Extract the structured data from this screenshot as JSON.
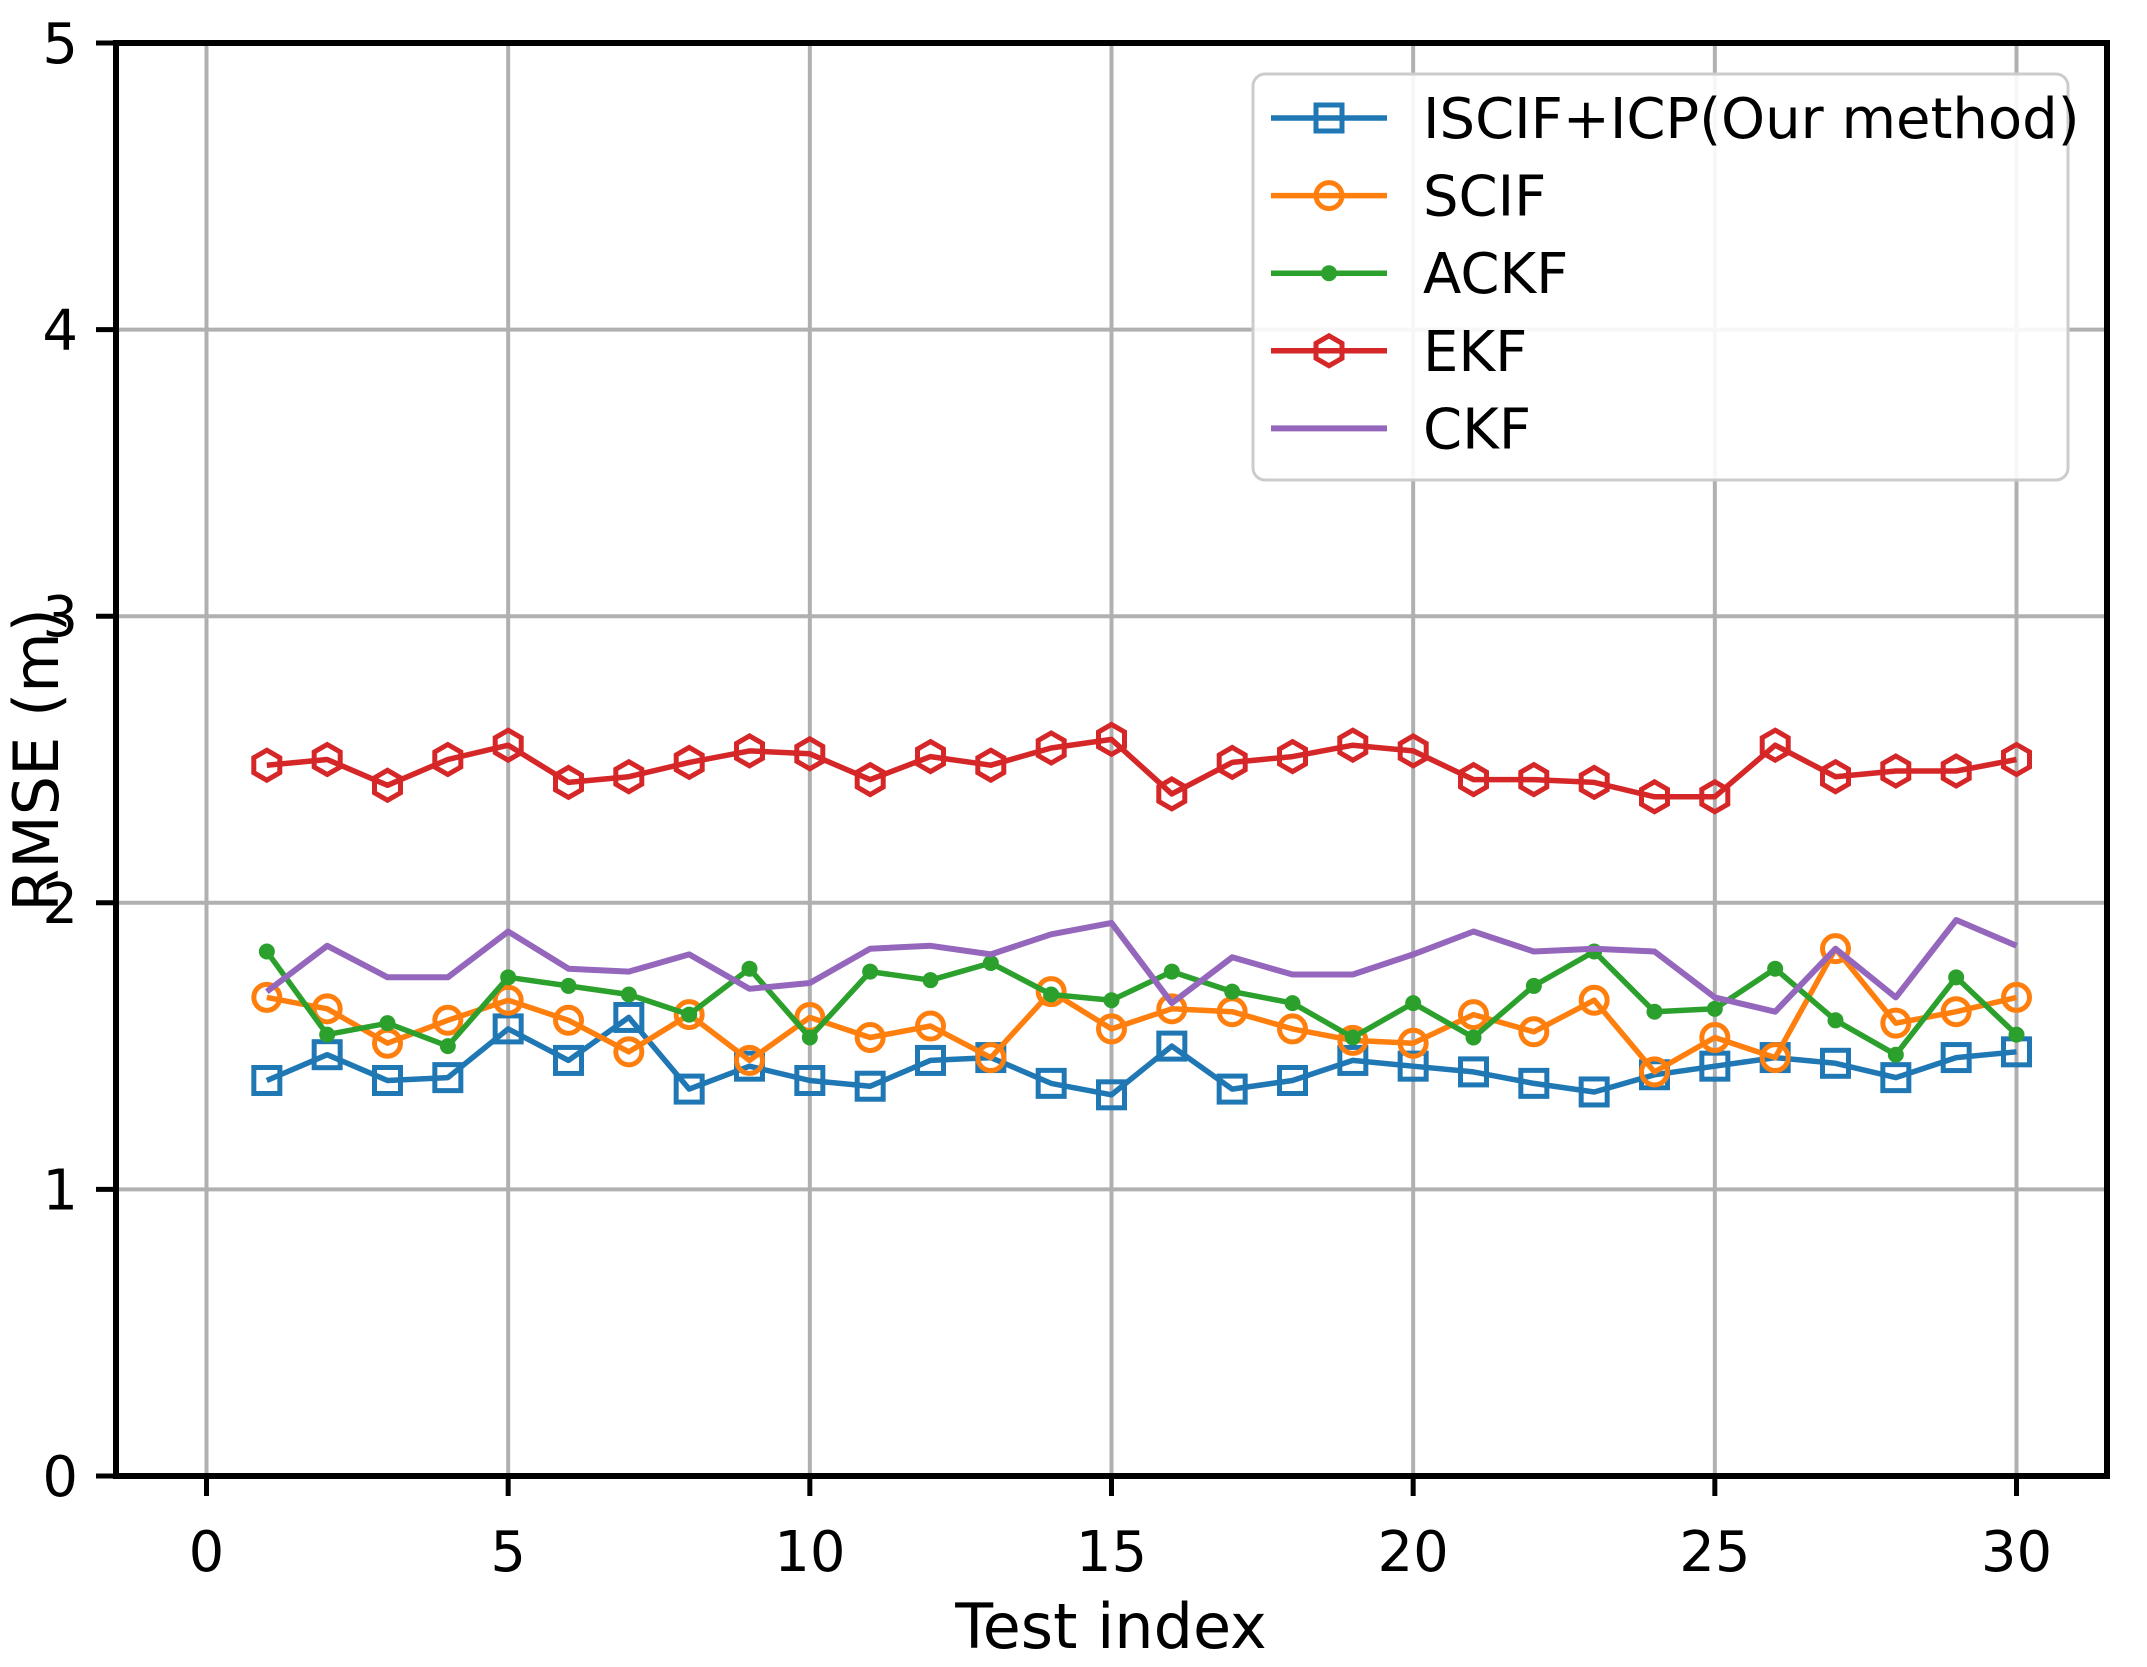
{
  "figure": {
    "background": "#ffffff",
    "grid_color": "#b0b0b0",
    "spine_color": "#000000",
    "legend_border_color": "#cccccc"
  },
  "chart_data": {
    "type": "line",
    "title": "",
    "xlabel": "Test index",
    "ylabel": "RMSE (m)",
    "x": [
      1,
      2,
      3,
      4,
      5,
      6,
      7,
      8,
      9,
      10,
      11,
      12,
      13,
      14,
      15,
      16,
      17,
      18,
      19,
      20,
      21,
      22,
      23,
      24,
      25,
      26,
      27,
      28,
      29,
      30
    ],
    "xticks": [
      0,
      5,
      10,
      15,
      20,
      25,
      30
    ],
    "yticks": [
      0,
      1,
      2,
      3,
      4,
      5
    ],
    "xlim": [
      -1.5,
      31.5
    ],
    "ylim": [
      0,
      5
    ],
    "grid": true,
    "legend_position": "upper right",
    "series": [
      {
        "name": "ISCIF+ICP(Our method)",
        "color": "#1f77b4",
        "marker": "square-open",
        "values": [
          1.38,
          1.47,
          1.38,
          1.39,
          1.56,
          1.45,
          1.6,
          1.35,
          1.43,
          1.38,
          1.36,
          1.45,
          1.46,
          1.37,
          1.33,
          1.5,
          1.35,
          1.38,
          1.45,
          1.43,
          1.41,
          1.37,
          1.34,
          1.4,
          1.43,
          1.46,
          1.44,
          1.39,
          1.46,
          1.48
        ]
      },
      {
        "name": "SCIF",
        "color": "#ff7f0e",
        "marker": "circle-open",
        "values": [
          1.67,
          1.63,
          1.51,
          1.59,
          1.66,
          1.59,
          1.48,
          1.61,
          1.45,
          1.6,
          1.53,
          1.57,
          1.46,
          1.69,
          1.56,
          1.63,
          1.62,
          1.56,
          1.52,
          1.51,
          1.61,
          1.55,
          1.66,
          1.41,
          1.53,
          1.46,
          1.84,
          1.58,
          1.62,
          1.67
        ]
      },
      {
        "name": "ACKF",
        "color": "#2ca02c",
        "marker": "dot-filled",
        "values": [
          1.83,
          1.54,
          1.58,
          1.5,
          1.74,
          1.71,
          1.68,
          1.61,
          1.77,
          1.53,
          1.76,
          1.73,
          1.79,
          1.68,
          1.66,
          1.76,
          1.69,
          1.65,
          1.53,
          1.65,
          1.53,
          1.71,
          1.83,
          1.62,
          1.63,
          1.77,
          1.59,
          1.47,
          1.74,
          1.54
        ]
      },
      {
        "name": "EKF",
        "color": "#d62728",
        "marker": "hexagon-open",
        "values": [
          2.48,
          2.5,
          2.41,
          2.5,
          2.55,
          2.42,
          2.44,
          2.49,
          2.53,
          2.52,
          2.43,
          2.51,
          2.48,
          2.54,
          2.57,
          2.38,
          2.49,
          2.51,
          2.55,
          2.53,
          2.43,
          2.43,
          2.42,
          2.37,
          2.37,
          2.55,
          2.44,
          2.46,
          2.46,
          2.5
        ]
      },
      {
        "name": "CKF",
        "color": "#9467bd",
        "marker": "none",
        "values": [
          1.69,
          1.85,
          1.74,
          1.74,
          1.9,
          1.77,
          1.76,
          1.82,
          1.7,
          1.72,
          1.84,
          1.85,
          1.82,
          1.89,
          1.93,
          1.65,
          1.81,
          1.75,
          1.75,
          1.82,
          1.9,
          1.83,
          1.84,
          1.83,
          1.67,
          1.62,
          1.84,
          1.67,
          1.94,
          1.85
        ]
      }
    ]
  }
}
